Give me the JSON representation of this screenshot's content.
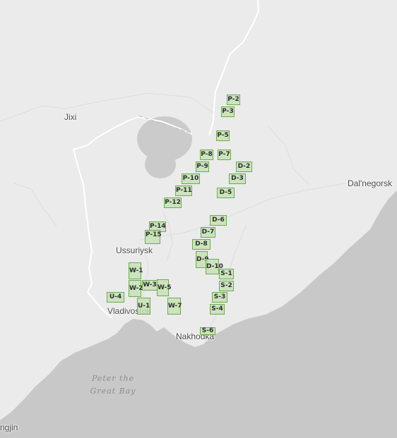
{
  "cities": [
    {
      "id": "jixi",
      "name": "Jixi"
    },
    {
      "id": "dalnegorsk",
      "name": "Dal'negorsk"
    },
    {
      "id": "ussuriysk",
      "name": "Ussuriysk"
    },
    {
      "id": "vladivostok",
      "name": "Vladivostok"
    },
    {
      "id": "nakhodka",
      "name": "Nakhodka"
    },
    {
      "id": "hoeryong-partial",
      "name": "ngjin"
    }
  ],
  "water_labels": [
    {
      "id": "peter-the-great-bay",
      "line1": "Peter the",
      "line2": "Great Bay"
    }
  ],
  "grid_cells": [
    "P-2",
    "P-3",
    "P-5",
    "P-7",
    "P-8",
    "P-9",
    "P-10",
    "P-11",
    "P-12",
    "D-2",
    "D-3",
    "D-5",
    "P-14",
    "P-15",
    "D-6",
    "D-7",
    "D-8",
    "D-9",
    "D-10",
    "W-1",
    "W-2",
    "W-3",
    "W-5",
    "W-7",
    "U-4",
    "U-1",
    "S-1",
    "S-2",
    "S-3",
    "S-4",
    "S-6"
  ],
  "colors": {
    "land": "#ebebeb",
    "sea": "#c8c8c8",
    "lake": "#cbcbcb",
    "border": "#ffffff",
    "cell_fill": "#c4e0b2",
    "cell_stroke": "#6bab52"
  }
}
